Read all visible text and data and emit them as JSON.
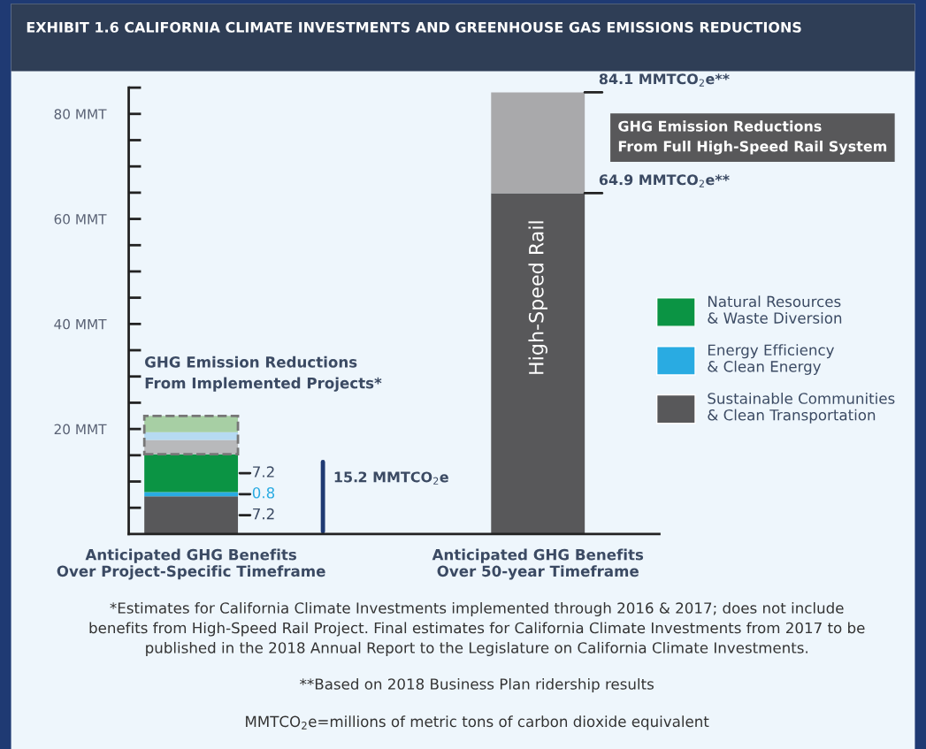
{
  "chart_data": {
    "type": "bar",
    "title": "EXHIBIT 1.6 CALIFORNIA CLIMATE INVESTMENTS AND GREENHOUSE GAS EMISSIONS REDUCTIONS",
    "categories": [
      "Anticipated GHG Benefits\nOver Project-Specific Timeframe",
      "Anticipated GHG Benefits\nOver 50-year Timeframe"
    ],
    "stacked": true,
    "series": [
      {
        "name": "Sustainable Communities\n& Clean Transportation",
        "color": "#58585a",
        "values": [
          7.2,
          64.9
        ],
        "value_labels": [
          "7.2",
          null
        ]
      },
      {
        "name": "Energy Efficiency\n& Clean Energy",
        "color": "#29abe2",
        "values": [
          0.8,
          null
        ],
        "value_labels": [
          "0.8",
          null
        ]
      },
      {
        "name": "Natural Resources\n& Waste Diversion",
        "color": "#0b9444",
        "values": [
          7.2,
          null
        ],
        "value_labels": [
          "7.2",
          null
        ]
      },
      {
        "color": "#b8b9bb",
        "values": [
          2.7,
          null
        ]
      },
      {
        "color": "#b6daf2",
        "values": [
          1.5,
          null
        ]
      },
      {
        "color": "#a7cfa4",
        "values": [
          3.1,
          null
        ]
      },
      {
        "color": "#a9a9ab",
        "values": [
          null,
          19.2
        ]
      }
    ],
    "ylim": [
      0,
      85
    ],
    "yticks": [
      {
        "value": 5,
        "label": null
      },
      {
        "value": 10,
        "label": null
      },
      {
        "value": 15,
        "label": null
      },
      {
        "value": 20,
        "label": "20 MMT"
      },
      {
        "value": 25,
        "label": null
      },
      {
        "value": 30,
        "label": null
      },
      {
        "value": 35,
        "label": null
      },
      {
        "value": 40,
        "label": "40 MMT"
      },
      {
        "value": 45,
        "label": null
      },
      {
        "value": 50,
        "label": null
      },
      {
        "value": 55,
        "label": null
      },
      {
        "value": 60,
        "label": "60 MMT"
      },
      {
        "value": 65,
        "label": null
      },
      {
        "value": 70,
        "label": null
      },
      {
        "value": 75,
        "label": null
      },
      {
        "value": 80,
        "label": "80 MMT"
      },
      {
        "value": 85,
        "label": null
      }
    ],
    "legend": "right",
    "grid": false,
    "annotations": [
      "84.1 MMTCO$_{2}$e**",
      "64.9 MMTCO$_{2}$e**",
      "15.2 MMTCO$_{2}$e",
      "GHG Emission Reductions\nFrom Full High-Speed Rail System",
      "GHG Emission Reductions\nFrom Implemented Projects*",
      "High-Speed Rail",
      "*Estimates for California Climate Investments implemented through 2016 & 2017; does not include\nbenefits from High-Speed Rail Project. Final estimates for California Climate Investments from 2017 to be\npublished in the 2018 Annual Report to the Legislature on California Climate Investments.",
      "**Based on 2018 Business Plan ridership results",
      "MMTCO$_{2}$e=millions of metric tons of carbon dioxide equivalent"
    ]
  }
}
